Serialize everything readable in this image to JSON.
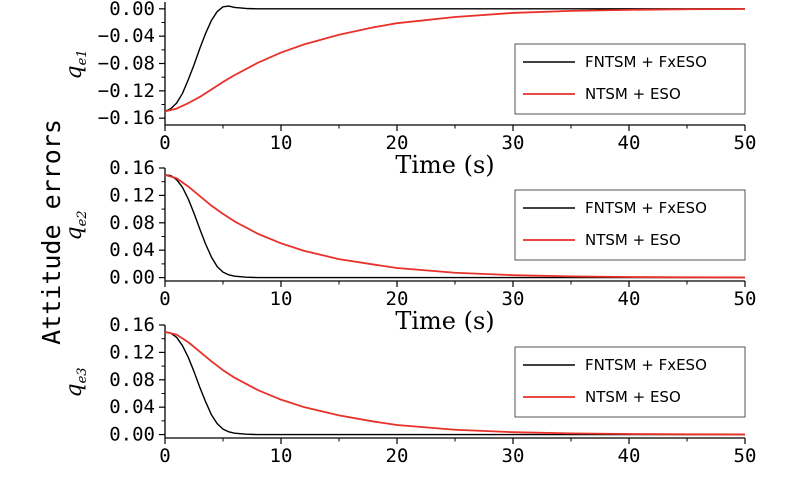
{
  "figure": {
    "ylabel": "Attitude errors"
  },
  "chart_data": [
    {
      "type": "line",
      "ylabel_main": "q",
      "ylabel_sub": "e1",
      "xlabel": "Time (s)",
      "xlim": [
        0,
        50
      ],
      "ylim": [
        -0.17,
        0.01
      ],
      "xticks": [
        0,
        10,
        20,
        30,
        40,
        50
      ],
      "xtick_labels": [
        "0",
        "10",
        "20",
        "30",
        "40",
        "50"
      ],
      "yticks": [
        0.0,
        -0.04,
        -0.08,
        -0.12,
        -0.16
      ],
      "ytick_labels": [
        "0.00",
        "−0.04",
        "−0.08",
        "−0.12",
        "−0.16"
      ],
      "legend_position": "right",
      "series": [
        {
          "name": "FNTSM + FxESO",
          "color": "#000000",
          "x": [
            0,
            0.5,
            1,
            1.5,
            2,
            2.5,
            3,
            3.5,
            4,
            4.5,
            5,
            5.5,
            6,
            7,
            8,
            10,
            15,
            20,
            30,
            40,
            50
          ],
          "y": [
            -0.15,
            -0.146,
            -0.138,
            -0.124,
            -0.104,
            -0.082,
            -0.058,
            -0.036,
            -0.017,
            -0.004,
            0.003,
            0.004,
            0.002,
            0.0005,
            0.0,
            0.0,
            0.0,
            0.0,
            0.0,
            0.0,
            0.0
          ]
        },
        {
          "name": "NTSM + ESO",
          "color": "#e8312a",
          "x": [
            0,
            1,
            2,
            3,
            4,
            5,
            6,
            8,
            10,
            12,
            15,
            18,
            20,
            25,
            30,
            35,
            40,
            45,
            50
          ],
          "y": [
            -0.15,
            -0.146,
            -0.138,
            -0.129,
            -0.118,
            -0.107,
            -0.097,
            -0.079,
            -0.064,
            -0.052,
            -0.038,
            -0.027,
            -0.021,
            -0.012,
            -0.006,
            -0.003,
            -0.0015,
            -0.0006,
            -0.0002
          ]
        }
      ]
    },
    {
      "type": "line",
      "ylabel_main": "q",
      "ylabel_sub": "e2",
      "xlabel": "Time (s)",
      "xlim": [
        0,
        50
      ],
      "ylim": [
        -0.005,
        0.16
      ],
      "xticks": [
        0,
        10,
        20,
        30,
        40,
        50
      ],
      "xtick_labels": [
        "0",
        "10",
        "20",
        "30",
        "40",
        "50"
      ],
      "yticks": [
        0.16,
        0.12,
        0.08,
        0.04,
        0.0
      ],
      "ytick_labels": [
        "0.16",
        "0.12",
        "0.08",
        "0.04",
        "0.00"
      ],
      "legend_position": "right",
      "series": [
        {
          "name": "FNTSM + FxESO",
          "color": "#000000",
          "x": [
            0,
            0.5,
            1,
            1.5,
            2,
            2.5,
            3,
            3.5,
            4,
            4.5,
            5,
            5.5,
            6,
            7,
            8,
            10,
            15,
            20,
            30,
            40,
            50
          ],
          "y": [
            0.15,
            0.149,
            0.143,
            0.132,
            0.115,
            0.094,
            0.071,
            0.049,
            0.03,
            0.016,
            0.008,
            0.004,
            0.002,
            0.0005,
            0.0,
            0.0,
            0.0,
            0.0,
            0.0,
            0.0,
            0.0
          ]
        },
        {
          "name": "NTSM + ESO",
          "color": "#e8312a",
          "x": [
            0,
            1,
            2,
            3,
            4,
            5,
            6,
            8,
            10,
            12,
            15,
            18,
            20,
            25,
            30,
            35,
            40,
            45,
            50
          ],
          "y": [
            0.15,
            0.145,
            0.133,
            0.119,
            0.105,
            0.093,
            0.082,
            0.064,
            0.05,
            0.039,
            0.027,
            0.019,
            0.014,
            0.007,
            0.0035,
            0.0017,
            0.0008,
            0.0004,
            0.0002
          ]
        }
      ]
    },
    {
      "type": "line",
      "ylabel_main": "q",
      "ylabel_sub": "e3",
      "xlabel": "",
      "xlim": [
        0,
        50
      ],
      "ylim": [
        -0.005,
        0.16
      ],
      "xticks": [
        0,
        10,
        20,
        30,
        40,
        50
      ],
      "xtick_labels": [
        "0",
        "10",
        "20",
        "30",
        "40",
        "50"
      ],
      "yticks": [
        0.16,
        0.12,
        0.08,
        0.04,
        0.0
      ],
      "ytick_labels": [
        "0.16",
        "0.12",
        "0.08",
        "0.04",
        "0.00"
      ],
      "legend_position": "right",
      "series": [
        {
          "name": "FNTSM + FxESO",
          "color": "#000000",
          "x": [
            0,
            0.5,
            1,
            1.5,
            2,
            2.5,
            3,
            3.5,
            4,
            4.5,
            5,
            5.5,
            6,
            7,
            8,
            10,
            15,
            20,
            30,
            40,
            50
          ],
          "y": [
            0.15,
            0.148,
            0.142,
            0.13,
            0.113,
            0.092,
            0.069,
            0.048,
            0.029,
            0.016,
            0.008,
            0.004,
            0.002,
            0.0005,
            0.0,
            0.0,
            0.0,
            0.0,
            0.0,
            0.0,
            0.0
          ]
        },
        {
          "name": "NTSM + ESO",
          "color": "#e8312a",
          "x": [
            0,
            1,
            2,
            3,
            4,
            5,
            6,
            8,
            10,
            12,
            15,
            18,
            20,
            25,
            30,
            35,
            40,
            45,
            50
          ],
          "y": [
            0.15,
            0.146,
            0.135,
            0.121,
            0.107,
            0.094,
            0.083,
            0.065,
            0.051,
            0.04,
            0.028,
            0.019,
            0.014,
            0.007,
            0.0035,
            0.0017,
            0.0008,
            0.0004,
            0.0002
          ]
        }
      ]
    }
  ]
}
